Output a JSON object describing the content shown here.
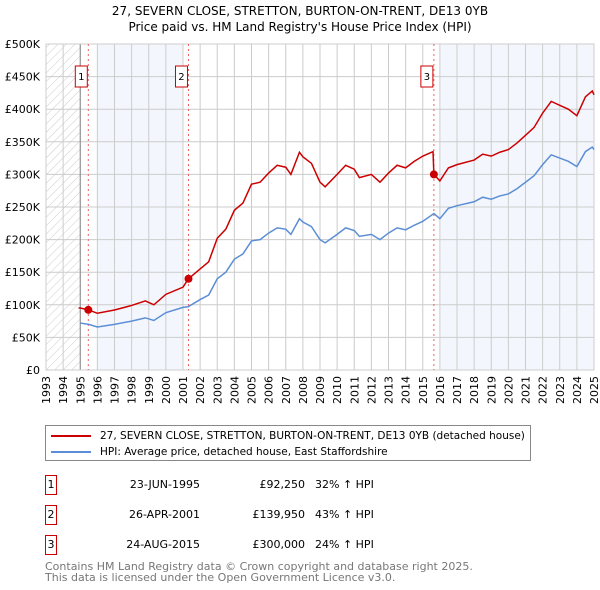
{
  "chart_data": {
    "type": "line",
    "title": "27, SEVERN CLOSE, STRETTON, BURTON-ON-TRENT, DE13 0YB",
    "subtitle": "Price paid vs. HM Land Registry's House Price Index (HPI)",
    "xlim": [
      1993,
      2025
    ],
    "ylim": [
      0,
      500000
    ],
    "x_ticks": [
      "1993",
      "1994",
      "1995",
      "1996",
      "1997",
      "1998",
      "1999",
      "2000",
      "2001",
      "2002",
      "2003",
      "2004",
      "2005",
      "2006",
      "2007",
      "2008",
      "2009",
      "2010",
      "2011",
      "2012",
      "2013",
      "2014",
      "2015",
      "2016",
      "2017",
      "2018",
      "2019",
      "2020",
      "2021",
      "2022",
      "2023",
      "2024",
      "2025"
    ],
    "y_ticks": [
      {
        "v": 0,
        "label": "£0"
      },
      {
        "v": 50000,
        "label": "£50K"
      },
      {
        "v": 100000,
        "label": "£100K"
      },
      {
        "v": 150000,
        "label": "£150K"
      },
      {
        "v": 200000,
        "label": "£200K"
      },
      {
        "v": 250000,
        "label": "£250K"
      },
      {
        "v": 300000,
        "label": "£300K"
      },
      {
        "v": 350000,
        "label": "£350K"
      },
      {
        "v": 400000,
        "label": "£400K"
      },
      {
        "v": 450000,
        "label": "£450K"
      },
      {
        "v": 500000,
        "label": "£500K"
      }
    ],
    "grid": true,
    "hatched_range": [
      1993,
      1995
    ],
    "shaded_ranges": [
      [
        1996,
        2001
      ],
      [
        2016,
        2025
      ]
    ],
    "series": [
      {
        "name": "27, SEVERN CLOSE, STRETTON, BURTON-ON-TRENT, DE13 0YB (detached house)",
        "color": "#cc0000",
        "x": [
          1994.9,
          1995.0,
          1995.47,
          1996,
          1997,
          1998,
          1998.8,
          1999.3,
          2000,
          2001,
          2001.32,
          2002,
          2002.5,
          2003,
          2003.5,
          2004,
          2004.5,
          2005,
          2005.5,
          2006,
          2006.5,
          2007,
          2007.3,
          2007.8,
          2008,
          2008.5,
          2009,
          2009.3,
          2010,
          2010.5,
          2011,
          2011.3,
          2012,
          2012.5,
          2013,
          2013.5,
          2014,
          2014.5,
          2015,
          2015.6,
          2015.65,
          2016,
          2016.5,
          2017,
          2018,
          2018.5,
          2019,
          2019.5,
          2020,
          2020.5,
          2021,
          2021.5,
          2022,
          2022.5,
          2023,
          2023.5,
          2024,
          2024.5,
          2024.9,
          2025
        ],
        "y": [
          95000,
          95000,
          92250,
          87000,
          92000,
          99000,
          106000,
          100000,
          116000,
          127000,
          139950,
          155000,
          166000,
          202000,
          216000,
          245000,
          256000,
          285000,
          288000,
          302000,
          314000,
          311000,
          300000,
          334000,
          327000,
          317000,
          288000,
          281000,
          300000,
          314000,
          308000,
          295000,
          300000,
          288000,
          302000,
          314000,
          310000,
          320000,
          328000,
          335000,
          300000,
          290000,
          310000,
          315000,
          322000,
          331000,
          328000,
          334000,
          338000,
          348000,
          360000,
          372000,
          394000,
          412000,
          406000,
          400000,
          390000,
          419000,
          428000,
          422000
        ]
      },
      {
        "name": "HPI: Average price, detached house, East Staffordshire",
        "color": "#5b8ed6",
        "x": [
          1995.0,
          1995.5,
          1996,
          1997,
          1998,
          1998.8,
          1999.3,
          2000,
          2001,
          2001.3,
          2002,
          2002.5,
          2003,
          2003.5,
          2004,
          2004.5,
          2005,
          2005.5,
          2006,
          2006.5,
          2007,
          2007.3,
          2007.8,
          2008,
          2008.5,
          2009,
          2009.3,
          2010,
          2010.5,
          2011,
          2011.3,
          2012,
          2012.5,
          2013,
          2013.5,
          2014,
          2014.5,
          2015,
          2015.65,
          2016,
          2016.5,
          2017,
          2018,
          2018.5,
          2019,
          2019.5,
          2020,
          2020.5,
          2021,
          2021.5,
          2022,
          2022.5,
          2023,
          2023.5,
          2024,
          2024.5,
          2024.9,
          2025
        ],
        "y": [
          72000,
          70000,
          66000,
          70000,
          75000,
          80000,
          76000,
          88000,
          96000,
          97000,
          108000,
          115000,
          140000,
          150000,
          170000,
          178000,
          198000,
          200000,
          210000,
          218000,
          216000,
          208000,
          232000,
          227000,
          220000,
          200000,
          195000,
          208000,
          218000,
          214000,
          205000,
          208000,
          200000,
          210000,
          218000,
          215000,
          222000,
          228000,
          240000,
          232000,
          248000,
          252000,
          258000,
          265000,
          262000,
          267000,
          270000,
          278000,
          288000,
          298000,
          315000,
          330000,
          325000,
          320000,
          312000,
          335000,
          342000,
          338000
        ]
      }
    ],
    "sales": [
      {
        "id": "1",
        "x": 1995.47,
        "y": 92250,
        "date": "23-JUN-1995",
        "price": "£92,250",
        "hpi": "32% ↑ HPI"
      },
      {
        "id": "2",
        "x": 2001.32,
        "y": 139950,
        "date": "26-APR-2001",
        "price": "£139,950",
        "hpi": "43% ↑ HPI"
      },
      {
        "id": "3",
        "x": 2015.65,
        "y": 300000,
        "date": "24-AUG-2015",
        "price": "£300,000",
        "hpi": "24% ↑ HPI"
      }
    ]
  },
  "footer": {
    "line1": "Contains HM Land Registry data © Crown copyright and database right 2025.",
    "line2": "This data is licensed under the Open Government Licence v3.0."
  }
}
